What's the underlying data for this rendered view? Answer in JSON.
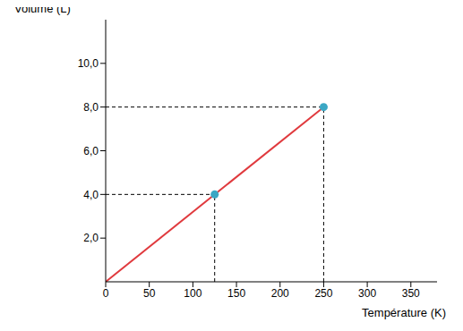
{
  "chart_data": {
    "type": "line",
    "x_label": "Température (K)",
    "y_label": "Volume (L)",
    "xlim": [
      0,
      380
    ],
    "xticks": [
      0,
      50,
      100,
      150,
      200,
      250,
      300,
      350
    ],
    "ylim": [
      0,
      12
    ],
    "yticks": [
      {
        "value": 2,
        "label": "2,0"
      },
      {
        "value": 4,
        "label": "4,0"
      },
      {
        "value": 6,
        "label": "6,0"
      },
      {
        "value": 8,
        "label": "8,0"
      },
      {
        "value": 10,
        "label": "10,0"
      }
    ],
    "grid": false,
    "series": [
      {
        "type": "line",
        "color": "#e03a3e",
        "x": [
          0,
          250
        ],
        "values": [
          0,
          8
        ],
        "marker": "none"
      },
      {
        "type": "scatter",
        "color": "#3ba7c4",
        "x": [
          125,
          250
        ],
        "values": [
          4,
          8
        ],
        "marker": "circle",
        "line_style": "dashed"
      }
    ]
  }
}
